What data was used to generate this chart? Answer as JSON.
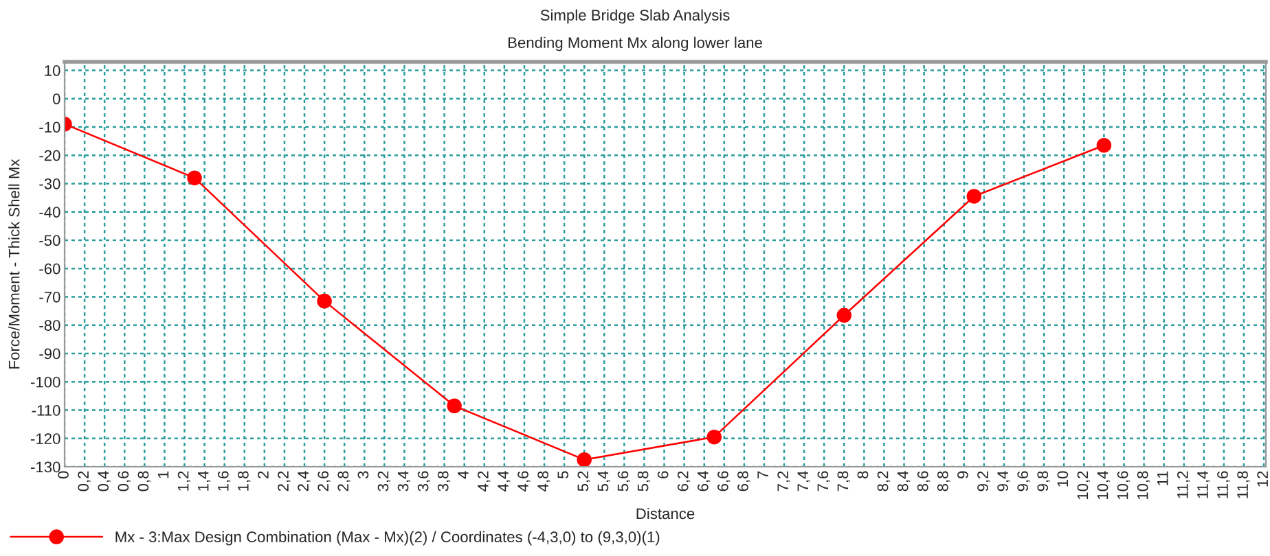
{
  "chart_data": {
    "type": "line",
    "title": "Simple Bridge Slab Analysis",
    "subtitle": "Bending Moment Mx along lower lane",
    "xlabel": "Distance",
    "ylabel": "Force/Moment - Thick Shell Mx",
    "x": [
      0,
      1.3,
      2.6,
      3.9,
      5.2,
      6.5,
      7.8,
      9.1,
      10.4
    ],
    "series": [
      {
        "name": "Mx - 3:Max Design Combination (Max - Mx)(2) / Coordinates (-4,3,0) to (9,3,0)(1)",
        "color": "#ff0000",
        "values": [
          -9,
          -28,
          -71.5,
          -108.5,
          -127.5,
          -119.5,
          -76.5,
          -34.5,
          -16.5
        ]
      }
    ],
    "xlim": [
      0,
      12.02
    ],
    "ylim": [
      -130,
      13
    ],
    "xticks": [
      0,
      {
        "value": 0.2,
        "label": "0,2"
      },
      {
        "value": 0.4,
        "label": "0,4"
      },
      {
        "value": 0.6,
        "label": "0,6"
      },
      {
        "value": 0.8,
        "label": "0,8"
      },
      1,
      {
        "value": 1.2,
        "label": "1,2"
      },
      {
        "value": 1.4,
        "label": "1,4"
      },
      {
        "value": 1.6,
        "label": "1,6"
      },
      {
        "value": 1.8,
        "label": "1,8"
      },
      2,
      {
        "value": 2.2,
        "label": "2,2"
      },
      {
        "value": 2.4,
        "label": "2,4"
      },
      {
        "value": 2.6,
        "label": "2,6"
      },
      {
        "value": 2.8,
        "label": "2,8"
      },
      3,
      {
        "value": 3.2,
        "label": "3,2"
      },
      {
        "value": 3.4,
        "label": "3,4"
      },
      {
        "value": 3.6,
        "label": "3,6"
      },
      {
        "value": 3.8,
        "label": "3,8"
      },
      4,
      {
        "value": 4.2,
        "label": "4,2"
      },
      {
        "value": 4.4,
        "label": "4,4"
      },
      {
        "value": 4.6,
        "label": "4,6"
      },
      {
        "value": 4.8,
        "label": "4,8"
      },
      5,
      {
        "value": 5.2,
        "label": "5,2"
      },
      {
        "value": 5.4,
        "label": "5,4"
      },
      {
        "value": 5.6,
        "label": "5,6"
      },
      {
        "value": 5.8,
        "label": "5,8"
      },
      6,
      {
        "value": 6.2,
        "label": "6,2"
      },
      {
        "value": 6.4,
        "label": "6,4"
      },
      {
        "value": 6.6,
        "label": "6,6"
      },
      {
        "value": 6.8,
        "label": "6,8"
      },
      7,
      {
        "value": 7.2,
        "label": "7,2"
      },
      {
        "value": 7.4,
        "label": "7,4"
      },
      {
        "value": 7.6,
        "label": "7,6"
      },
      {
        "value": 7.8,
        "label": "7,8"
      },
      8,
      {
        "value": 8.2,
        "label": "8,2"
      },
      {
        "value": 8.4,
        "label": "8,4"
      },
      {
        "value": 8.6,
        "label": "8,6"
      },
      {
        "value": 8.8,
        "label": "8,8"
      },
      9,
      {
        "value": 9.2,
        "label": "9,2"
      },
      {
        "value": 9.4,
        "label": "9,4"
      },
      {
        "value": 9.6,
        "label": "9,6"
      },
      {
        "value": 9.8,
        "label": "9,8"
      },
      10,
      {
        "value": 10.2,
        "label": "10,2"
      },
      {
        "value": 10.4,
        "label": "10,4"
      },
      {
        "value": 10.6,
        "label": "10,6"
      },
      {
        "value": 10.8,
        "label": "10,8"
      },
      11,
      {
        "value": 11.2,
        "label": "11,2"
      },
      {
        "value": 11.4,
        "label": "11,4"
      },
      {
        "value": 11.6,
        "label": "11,6"
      },
      {
        "value": 11.8,
        "label": "11,8"
      },
      12
    ],
    "yticks": [
      10,
      0,
      -10,
      -20,
      -30,
      -40,
      -50,
      -60,
      -70,
      -80,
      -90,
      -100,
      -110,
      -120,
      -130
    ],
    "grid": true,
    "legend": "bottom left",
    "marker": "circle",
    "line_style": "solid"
  }
}
